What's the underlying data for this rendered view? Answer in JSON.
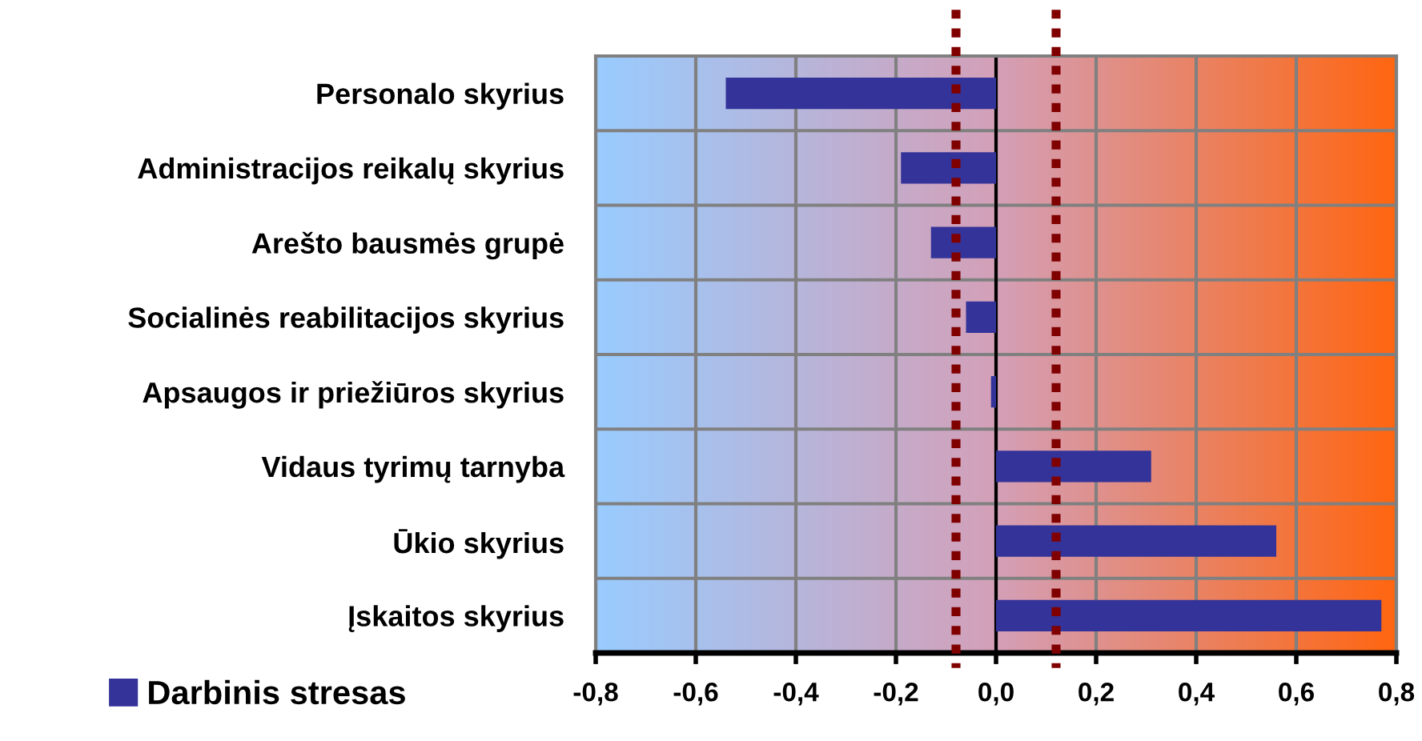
{
  "chart_data": {
    "type": "bar",
    "orientation": "horizontal",
    "categories": [
      "Personalo skyrius",
      "Administracijos reikalų skyrius",
      "Arešto bausmės grupė",
      "Socialinės reabilitacijos skyrius",
      "Apsaugos ir priežiūros skyrius",
      "Vidaus tyrimų tarnyba",
      "Ūkio skyrius",
      "Įskaitos skyrius"
    ],
    "series": [
      {
        "name": "Darbinis stresas",
        "color": "#333399",
        "values": [
          -0.54,
          -0.19,
          -0.13,
          -0.06,
          -0.01,
          0.31,
          0.56,
          0.77
        ]
      }
    ],
    "xlim": [
      -0.8,
      0.8
    ],
    "xticks": [
      {
        "value": -0.8,
        "label": "-0,8"
      },
      {
        "value": -0.6,
        "label": "-0,6"
      },
      {
        "value": -0.4,
        "label": "-0,4"
      },
      {
        "value": -0.2,
        "label": "-0,2"
      },
      {
        "value": 0.0,
        "label": "0,0"
      },
      {
        "value": 0.2,
        "label": "0,2"
      },
      {
        "value": 0.4,
        "label": "0,4"
      },
      {
        "value": 0.6,
        "label": "0,6"
      },
      {
        "value": 0.8,
        "label": "0,8"
      }
    ],
    "ref_lines": [
      {
        "axis": "x",
        "value": -0.08,
        "color": "#800000",
        "line_style": "dotted"
      },
      {
        "axis": "x",
        "value": 0.12,
        "color": "#800000",
        "line_style": "dotted"
      }
    ],
    "grid": true,
    "legend": "bottom left"
  }
}
